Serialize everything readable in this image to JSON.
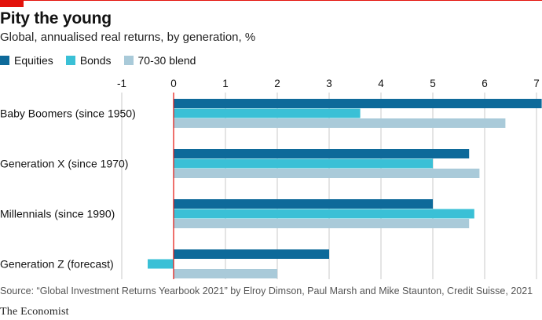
{
  "header": {
    "title": "Pity the young",
    "subtitle": "Global, annualised real returns, by generation, %"
  },
  "footer": {
    "source": "Source: “Global Investment Returns Yearbook 2021” by Elroy Dimson, Paul Marsh and Mike Staunton, Credit Suisse, 2021",
    "brand": "The Economist"
  },
  "colors": {
    "accent": "#e3120b",
    "zero_line": "#e3120b",
    "grid": "#c8c8c8"
  },
  "chart_data": {
    "type": "bar",
    "orientation": "horizontal",
    "title": "Pity the young",
    "subtitle": "Global, annualised real returns, by generation, %",
    "categories": [
      "Baby Boomers (since 1950)",
      "Generation X (since 1970)",
      "Millennials (since 1990)",
      "Generation Z (forecast)"
    ],
    "series": [
      {
        "name": "Equities",
        "color": "#0e6a9a",
        "values": [
          7.1,
          5.7,
          5.0,
          3.0
        ]
      },
      {
        "name": "Bonds",
        "color": "#3ac0d6",
        "values": [
          3.6,
          5.0,
          5.8,
          -0.5
        ]
      },
      {
        "name": "70-30 blend",
        "color": "#a9cad9",
        "values": [
          6.4,
          5.9,
          5.7,
          2.0
        ]
      }
    ],
    "xlim": [
      -1,
      7
    ],
    "ticks": [
      -1,
      0,
      1,
      2,
      3,
      4,
      5,
      6,
      7
    ],
    "tick_labels": [
      "-1",
      "0",
      "1",
      "2",
      "3",
      "4",
      "5",
      "6",
      "7"
    ],
    "grid": true,
    "legend": "top-left",
    "xlabel": "",
    "ylabel": ""
  }
}
